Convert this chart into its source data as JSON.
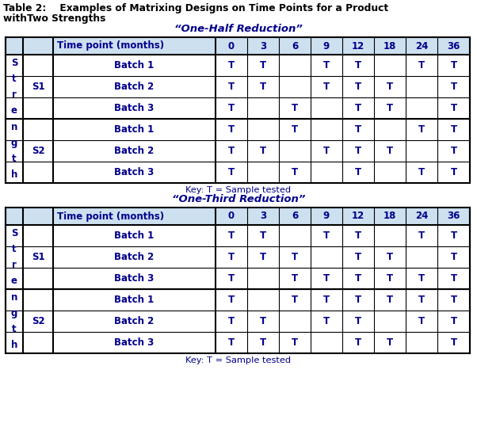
{
  "title_line1": "Table 2:    Examples of Matrixing Designs on Time Points for a Product",
  "title_line2": "withTwo Strengths",
  "subtitle1": "“One-Half Reduction”",
  "subtitle2": "“One-Third Reduction”",
  "key_text": "Key: T = Sample tested",
  "text_color": "#00008B",
  "bg_color": "#ffffff",
  "header_bg": "#cce0f0",
  "time_points": [
    "0",
    "3",
    "6",
    "9",
    "12",
    "18",
    "24",
    "36"
  ],
  "table1_data": {
    "S1": {
      "Batch 1": [
        "T",
        "T",
        "",
        "T",
        "T",
        "",
        "T",
        "T"
      ],
      "Batch 2": [
        "T",
        "T",
        "",
        "T",
        "T",
        "T",
        "",
        "T"
      ],
      "Batch 3": [
        "T",
        "",
        "T",
        "",
        "T",
        "T",
        "",
        "T"
      ]
    },
    "S2": {
      "Batch 1": [
        "T",
        "",
        "T",
        "",
        "T",
        "",
        "T",
        "T"
      ],
      "Batch 2": [
        "T",
        "T",
        "",
        "T",
        "T",
        "T",
        "",
        "T"
      ],
      "Batch 3": [
        "T",
        "",
        "T",
        "",
        "T",
        "",
        "T",
        "T"
      ]
    }
  },
  "table2_data": {
    "S1": {
      "Batch 1": [
        "T",
        "T",
        "",
        "T",
        "T",
        "",
        "T",
        "T"
      ],
      "Batch 2": [
        "T",
        "T",
        "T",
        "",
        "T",
        "T",
        "",
        "T"
      ],
      "Batch 3": [
        "T",
        "",
        "T",
        "T",
        "T",
        "T",
        "T",
        "T"
      ]
    },
    "S2": {
      "Batch 1": [
        "T",
        "",
        "T",
        "T",
        "T",
        "T",
        "T",
        "T"
      ],
      "Batch 2": [
        "T",
        "T",
        "",
        "T",
        "T",
        "",
        "T",
        "T"
      ],
      "Batch 3": [
        "T",
        "T",
        "T",
        "",
        "T",
        "T",
        "",
        "T"
      ]
    }
  }
}
